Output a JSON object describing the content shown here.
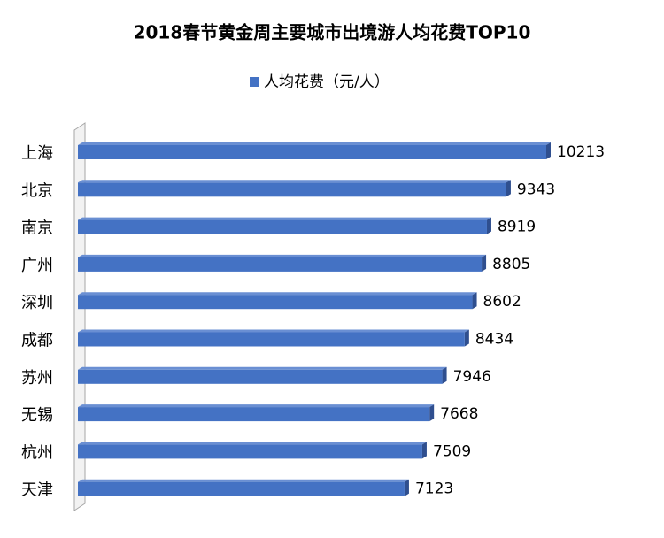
{
  "chart_data": {
    "type": "hbar3d",
    "title": "2018春节黄金周主要城市出境游人均花费TOP10",
    "categories": [
      "上海",
      "北京",
      "南京",
      "广州",
      "深圳",
      "成都",
      "苏州",
      "无锡",
      "杭州",
      "天津"
    ],
    "series": [
      {
        "name": "人均花费（元/人）",
        "color": "#4472c4",
        "values": [
          10213,
          9343,
          8919,
          8805,
          8602,
          8434,
          7946,
          7668,
          7509,
          7123
        ]
      }
    ]
  }
}
